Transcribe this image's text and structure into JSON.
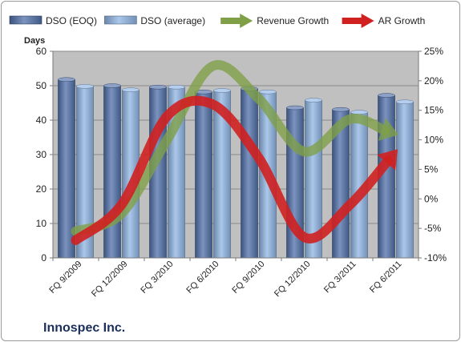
{
  "company": "Innospec Inc.",
  "chart_data": {
    "type": "bar",
    "categories": [
      "FQ 9/2009",
      "FQ 12/2009",
      "FQ 3/2010",
      "FQ 6/2010",
      "FQ 9/2010",
      "FQ 12/2010",
      "FQ 3/2011",
      "FQ 6/2011"
    ],
    "ylabel": "Days",
    "ylim": [
      0,
      60
    ],
    "y_ticks": [
      "0",
      "10",
      "20",
      "30",
      "40",
      "50",
      "60"
    ],
    "y2lim": [
      -10,
      25
    ],
    "y2_ticks": [
      "-10%",
      "-5%",
      "0%",
      "5%",
      "10%",
      "15%",
      "20%",
      "25%"
    ],
    "plot_background": "#c0c0c0",
    "grid": true,
    "legend_position": "top",
    "series": [
      {
        "name": "DSO (EOQ)",
        "type": "bar",
        "axis": "left",
        "color": "#4f6fa8",
        "values": [
          51.8,
          50.0,
          49.6,
          48.2,
          49.1,
          43.6,
          43.1,
          47.2
        ]
      },
      {
        "name": "DSO (average)",
        "type": "bar",
        "axis": "left",
        "color": "#8fb4e3",
        "values": [
          49.8,
          48.8,
          49.6,
          48.6,
          48.2,
          45.8,
          42.3,
          45.3
        ]
      },
      {
        "name": "Revenue Growth",
        "type": "line",
        "axis": "right",
        "color": "#7fa046",
        "values": [
          -5.5,
          -2.5,
          10.0,
          22.5,
          17.0,
          8.0,
          13.5,
          11.0
        ]
      },
      {
        "name": "AR Growth",
        "type": "line",
        "axis": "right",
        "color": "#d02020",
        "values": [
          -7.0,
          -1.0,
          14.0,
          16.0,
          7.0,
          -6.5,
          -1.0,
          8.0
        ]
      }
    ]
  }
}
